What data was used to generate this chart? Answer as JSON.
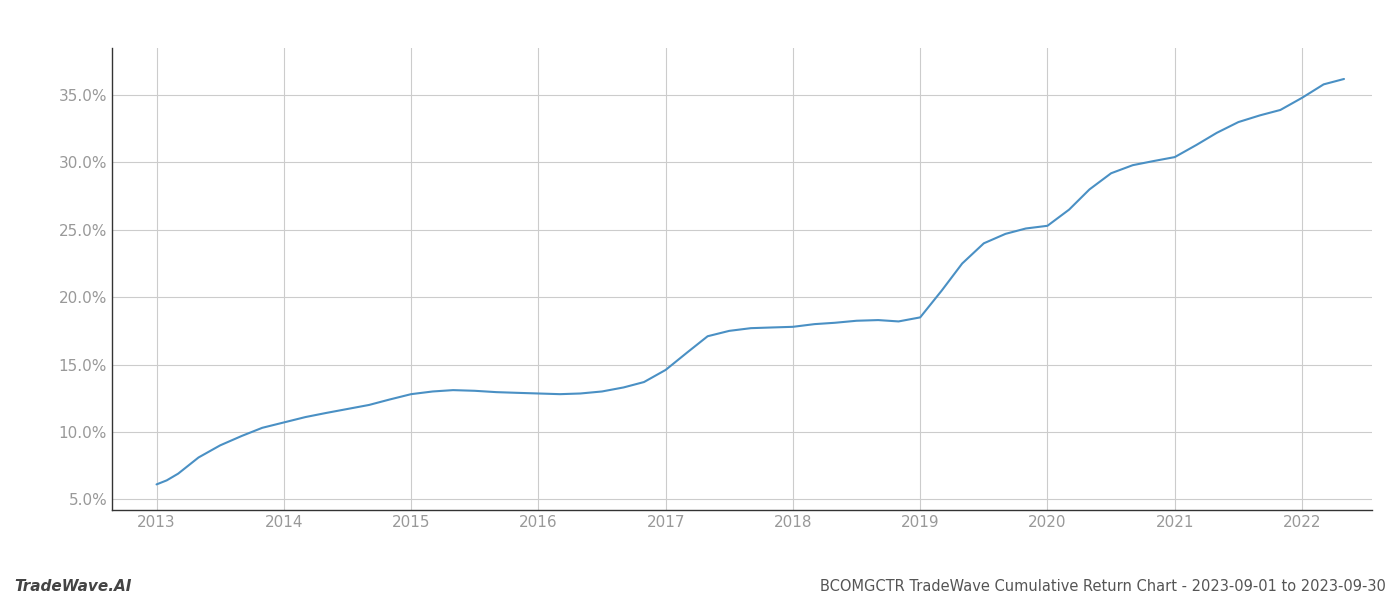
{
  "title": "BCOMGCTR TradeWave Cumulative Return Chart - 2023-09-01 to 2023-09-30",
  "watermark": "TradeWave.AI",
  "line_color": "#4a90c4",
  "background_color": "#ffffff",
  "grid_color": "#cccccc",
  "x_years": [
    2013,
    2014,
    2015,
    2016,
    2017,
    2018,
    2019,
    2020,
    2021,
    2022
  ],
  "x_data": [
    2013.0,
    2013.08,
    2013.17,
    2013.25,
    2013.33,
    2013.5,
    2013.67,
    2013.83,
    2014.0,
    2014.17,
    2014.33,
    2014.5,
    2014.67,
    2014.83,
    2015.0,
    2015.17,
    2015.33,
    2015.5,
    2015.67,
    2015.83,
    2016.0,
    2016.17,
    2016.33,
    2016.5,
    2016.67,
    2016.83,
    2017.0,
    2017.17,
    2017.33,
    2017.5,
    2017.67,
    2017.83,
    2018.0,
    2018.17,
    2018.33,
    2018.5,
    2018.67,
    2018.83,
    2019.0,
    2019.17,
    2019.33,
    2019.5,
    2019.67,
    2019.83,
    2020.0,
    2020.17,
    2020.33,
    2020.5,
    2020.67,
    2020.83,
    2021.0,
    2021.17,
    2021.33,
    2021.5,
    2021.67,
    2021.83,
    2022.0,
    2022.17,
    2022.33
  ],
  "y_data": [
    6.1,
    6.4,
    6.9,
    7.5,
    8.1,
    9.0,
    9.7,
    10.3,
    10.7,
    11.1,
    11.4,
    11.7,
    12.0,
    12.4,
    12.8,
    13.0,
    13.1,
    13.05,
    12.95,
    12.9,
    12.85,
    12.8,
    12.85,
    13.0,
    13.3,
    13.7,
    14.6,
    15.9,
    17.1,
    17.5,
    17.7,
    17.75,
    17.8,
    18.0,
    18.1,
    18.25,
    18.3,
    18.2,
    18.5,
    20.5,
    22.5,
    24.0,
    24.7,
    25.1,
    25.3,
    26.5,
    28.0,
    29.2,
    29.8,
    30.1,
    30.4,
    31.3,
    32.2,
    33.0,
    33.5,
    33.9,
    34.8,
    35.8,
    36.2
  ],
  "ylim": [
    4.2,
    38.5
  ],
  "yticks": [
    5.0,
    10.0,
    15.0,
    20.0,
    25.0,
    30.0,
    35.0
  ],
  "xlim": [
    2012.65,
    2022.55
  ],
  "line_width": 1.5,
  "title_fontsize": 10.5,
  "watermark_fontsize": 11,
  "tick_fontsize": 11,
  "tick_color": "#999999"
}
